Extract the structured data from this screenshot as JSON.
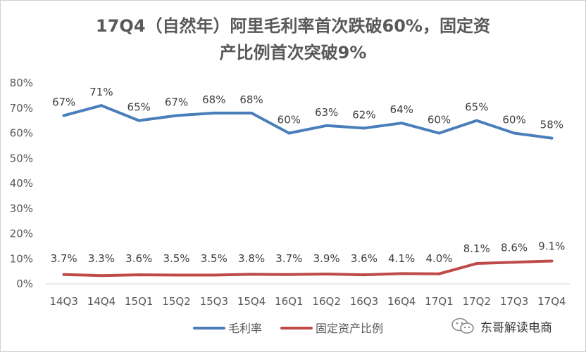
{
  "chart_data": {
    "type": "line",
    "title_lines": [
      "17Q4（自然年）阿里毛利率首次跌破60%，固定资",
      "产比例首次突破9%"
    ],
    "categories": [
      "14Q3",
      "14Q4",
      "15Q1",
      "15Q2",
      "15Q3",
      "15Q4",
      "16Q1",
      "16Q2",
      "16Q3",
      "16Q4",
      "17Q1",
      "17Q2",
      "17Q3",
      "17Q4"
    ],
    "ylim": [
      0,
      80
    ],
    "yticks": [
      0,
      10,
      20,
      30,
      40,
      50,
      60,
      70,
      80
    ],
    "ytick_labels": [
      "0%",
      "10%",
      "20%",
      "30%",
      "40%",
      "50%",
      "60%",
      "70%",
      "80%"
    ],
    "grid": false,
    "legend_position": "bottom",
    "series": [
      {
        "name": "毛利率",
        "color": "#4a7ebb",
        "values": [
          67,
          71,
          65,
          67,
          68,
          68,
          60,
          63,
          62,
          64,
          60,
          65,
          60,
          58
        ],
        "labels": [
          "67%",
          "71%",
          "65%",
          "67%",
          "68%",
          "68%",
          "60%",
          "63%",
          "62%",
          "64%",
          "60%",
          "65%",
          "60%",
          "58%"
        ]
      },
      {
        "name": "固定资产比例",
        "color": "#be4b48",
        "values": [
          3.7,
          3.3,
          3.6,
          3.5,
          3.5,
          3.8,
          3.7,
          3.9,
          3.6,
          4.1,
          4.0,
          8.1,
          8.6,
          9.1
        ],
        "labels": [
          "3.7%",
          "3.3%",
          "3.6%",
          "3.5%",
          "3.5%",
          "3.8%",
          "3.7%",
          "3.9%",
          "3.6%",
          "4.1%",
          "4.0%",
          "8.1%",
          "8.6%",
          "9.1%"
        ]
      }
    ]
  },
  "watermark": {
    "text": "东哥解读电商",
    "icon": "wechat-icon"
  }
}
